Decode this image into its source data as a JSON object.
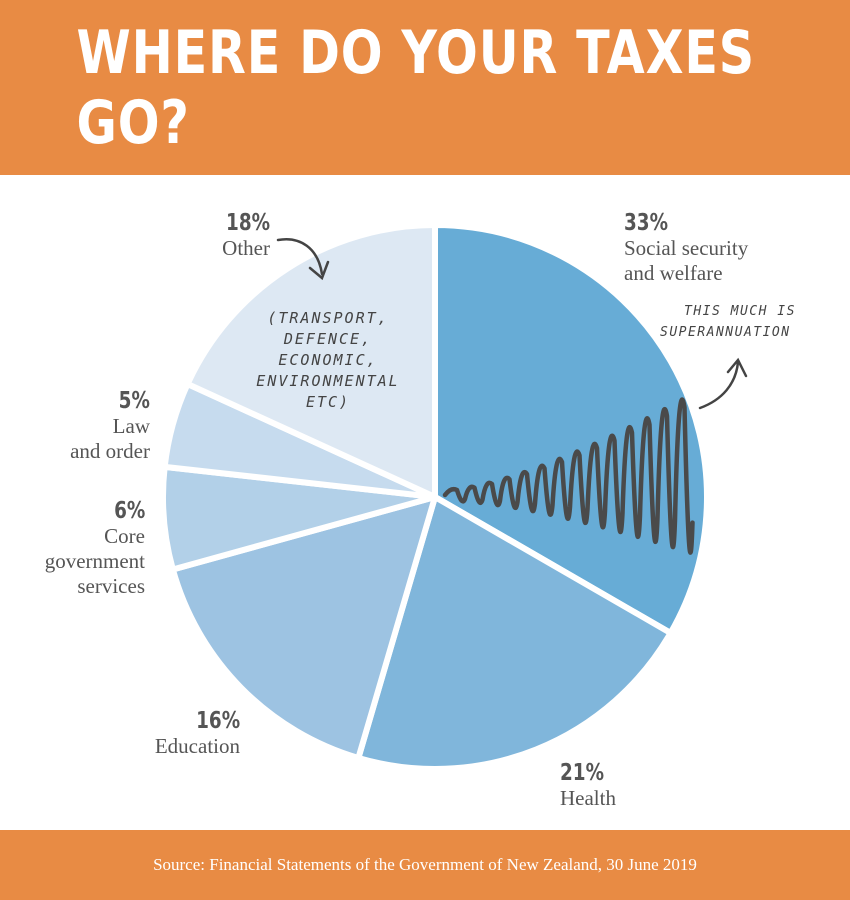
{
  "title": "Where do your taxes go?",
  "source": "Source: Financial Statements of the Government of New Zealand, 30 June 2019",
  "other_note": [
    "(TRANSPORT,",
    "DEFENCE,",
    "ECONOMIC,",
    "ENVIRONMENTAL",
    "ETC)"
  ],
  "super_note": [
    "THIS MUCH IS",
    "SUPERANNUATION"
  ],
  "colors": {
    "banner": "#e88b44",
    "social": "#67acd6",
    "health": "#80b6db",
    "education": "#9dc3e2",
    "core": "#b2d0e8",
    "law": "#c6dbee",
    "other": "#dde8f3",
    "scribble": "#4a4a4a"
  },
  "chart_data": {
    "type": "pie",
    "title": "Where do your taxes go?",
    "slices": [
      {
        "pct_label": "33%",
        "value": 33,
        "label_lines": [
          "Social security",
          "and welfare"
        ]
      },
      {
        "pct_label": "21%",
        "value": 21,
        "label_lines": [
          "Health"
        ]
      },
      {
        "pct_label": "16%",
        "value": 16,
        "label_lines": [
          "Education"
        ]
      },
      {
        "pct_label": "6%",
        "value": 6,
        "label_lines": [
          "Core",
          "government",
          "services"
        ]
      },
      {
        "pct_label": "5%",
        "value": 5,
        "label_lines": [
          "Law",
          "and order"
        ]
      },
      {
        "pct_label": "18%",
        "value": 18,
        "label_lines": [
          "Other"
        ]
      }
    ]
  }
}
